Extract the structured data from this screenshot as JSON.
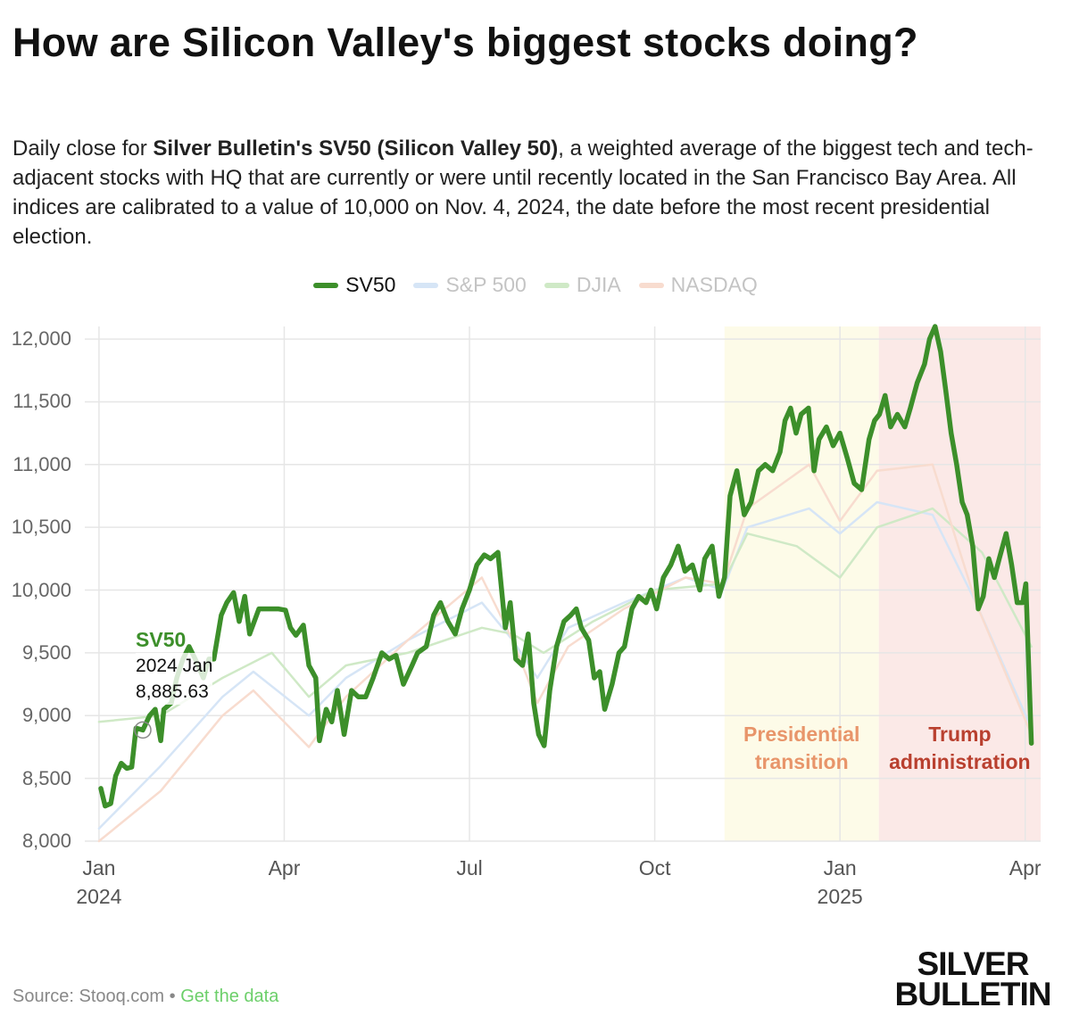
{
  "chart_data": {
    "type": "line",
    "title": "How are Silicon Valley's biggest stocks doing?",
    "subtitle": [
      "Daily close for ",
      "Silver Bulletin's SV50 (Silicon Valley 50)",
      ", a weighted average of the biggest tech and tech-adjacent stocks with HQ that are currently or were until recently located in the San Francisco Bay Area. All indices are calibrated to a value of 10,000 on Nov. 4, 2024, the date before the most recent presidential election."
    ],
    "highlighted": "SV50",
    "xlim": [
      -0.23,
      15.25
    ],
    "xticks": [
      {
        "value": 0,
        "label": "Jan\n2024"
      },
      {
        "value": 3,
        "label": "Apr"
      },
      {
        "value": 6,
        "label": "Jul"
      },
      {
        "value": 9,
        "label": "Oct"
      },
      {
        "value": 12,
        "label": "Jan\n2025"
      },
      {
        "value": 15,
        "label": "Apr"
      }
    ],
    "ylim": [
      8000,
      12100
    ],
    "yticks": [
      {
        "value": 8000,
        "label": "8,000"
      },
      {
        "value": 8500,
        "label": "8,500"
      },
      {
        "value": 9000,
        "label": "9,000"
      },
      {
        "value": 9500,
        "label": "9,500"
      },
      {
        "value": 10000,
        "label": "10,000"
      },
      {
        "value": 10500,
        "label": "10,500"
      },
      {
        "value": 11000,
        "label": "11,000"
      },
      {
        "value": 11500,
        "label": "11,500"
      },
      {
        "value": 12000,
        "label": "12,000"
      }
    ],
    "grid": true,
    "bands": [
      {
        "label": "Presidential transition",
        "start": 10.13,
        "end": 12.63,
        "color": "#fdfbe8",
        "text_color": "#e8956a"
      },
      {
        "label": "Trump administration",
        "start": 12.63,
        "end": 15.25,
        "color": "#fbe9e7",
        "text_color": "#b9402f"
      }
    ],
    "series": [
      {
        "name": "S&P 500",
        "color": "#d6e5f6",
        "x": [
          0,
          1,
          2,
          2.5,
          3.4,
          4,
          5,
          6.2,
          6.7,
          7.1,
          7.6,
          8.5,
          9.5,
          10.1,
          10.5,
          11.5,
          12,
          12.6,
          13.5,
          14.2,
          15.1
        ],
        "values": [
          8100,
          8600,
          9150,
          9350,
          9000,
          9300,
          9600,
          9900,
          9600,
          9300,
          9700,
          9900,
          10100,
          10000,
          10500,
          10650,
          10450,
          10700,
          10600,
          9900,
          8900
        ]
      },
      {
        "name": "DJIA",
        "color": "#cfe9c6",
        "x": [
          0,
          1,
          2,
          2.8,
          3.4,
          4,
          5,
          6.2,
          6.7,
          7.2,
          8,
          9,
          10.1,
          10.5,
          11.3,
          12,
          12.6,
          13.5,
          14.3,
          15.1
        ],
        "values": [
          8950,
          9000,
          9300,
          9500,
          9150,
          9400,
          9500,
          9700,
          9650,
          9500,
          9750,
          10000,
          10050,
          10450,
          10350,
          10100,
          10500,
          10650,
          10300,
          9550
        ]
      },
      {
        "name": "NASDAQ",
        "color": "#f8dccf",
        "x": [
          0,
          1,
          2,
          2.5,
          3.4,
          4,
          5,
          6.2,
          6.7,
          7.1,
          7.6,
          8.5,
          9.5,
          10.1,
          10.5,
          11.5,
          12,
          12.6,
          13.5,
          14.2,
          15.1
        ],
        "values": [
          8000,
          8400,
          9000,
          9200,
          8750,
          9150,
          9600,
          10100,
          9600,
          9100,
          9550,
          9850,
          10100,
          10050,
          10650,
          11000,
          10550,
          10950,
          11000,
          9900,
          8850
        ]
      },
      {
        "name": "SV50",
        "color": "#3c8f2a",
        "x": [
          0.03,
          0.1,
          0.19,
          0.27,
          0.36,
          0.45,
          0.53,
          0.6,
          0.71,
          0.82,
          0.91,
          1.0,
          1.05,
          1.17,
          1.26,
          1.36,
          1.46,
          1.58,
          1.69,
          1.78,
          1.86,
          1.98,
          2.07,
          2.18,
          2.27,
          2.36,
          2.44,
          2.59,
          2.73,
          2.9,
          3.02,
          3.1,
          3.19,
          3.31,
          3.4,
          3.51,
          3.57,
          3.68,
          3.77,
          3.86,
          3.97,
          4.09,
          4.2,
          4.32,
          4.44,
          4.58,
          4.7,
          4.81,
          4.93,
          5.07,
          5.16,
          5.3,
          5.42,
          5.53,
          5.65,
          5.77,
          5.88,
          6.0,
          6.12,
          6.24,
          6.34,
          6.46,
          6.58,
          6.66,
          6.75,
          6.86,
          6.95,
          7.04,
          7.12,
          7.21,
          7.3,
          7.41,
          7.53,
          7.64,
          7.73,
          7.81,
          7.93,
          8.02,
          8.11,
          8.19,
          8.31,
          8.42,
          8.51,
          8.63,
          8.74,
          8.86,
          8.94,
          9.03,
          9.14,
          9.26,
          9.38,
          9.49,
          9.61,
          9.73,
          9.81,
          9.93,
          10.04,
          10.13,
          10.22,
          10.33,
          10.45,
          10.56,
          10.68,
          10.79,
          10.91,
          11.03,
          11.11,
          11.2,
          11.29,
          11.37,
          11.49,
          11.58,
          11.66,
          11.78,
          11.89,
          12.0,
          12.12,
          12.23,
          12.35,
          12.47,
          12.56,
          12.64,
          12.73,
          12.82,
          12.93,
          13.05,
          13.14,
          13.25,
          13.37,
          13.45,
          13.54,
          13.63,
          13.71,
          13.8,
          13.89,
          13.98,
          14.06,
          14.15,
          14.24,
          14.32,
          14.41,
          14.5,
          14.58,
          14.69,
          14.78,
          14.87,
          14.96,
          15.01,
          15.1
        ],
        "values": [
          8420,
          8280,
          8300,
          8520,
          8620,
          8580,
          8590,
          8900,
          8885.63,
          9000,
          9050,
          8800,
          9050,
          9100,
          9300,
          9450,
          9550,
          9430,
          9300,
          9450,
          9450,
          9800,
          9900,
          9980,
          9750,
          9950,
          9650,
          9850,
          9850,
          9850,
          9840,
          9700,
          9640,
          9720,
          9400,
          9300,
          8800,
          9050,
          8950,
          9200,
          8850,
          9200,
          9150,
          9150,
          9300,
          9500,
          9450,
          9480,
          9250,
          9400,
          9500,
          9550,
          9800,
          9900,
          9750,
          9650,
          9850,
          10000,
          10200,
          10280,
          10250,
          10300,
          9700,
          9900,
          9450,
          9400,
          9650,
          9100,
          8850,
          8760,
          9200,
          9550,
          9750,
          9800,
          9850,
          9700,
          9600,
          9300,
          9350,
          9050,
          9250,
          9500,
          9550,
          9850,
          9950,
          9900,
          10000,
          9850,
          10100,
          10200,
          10350,
          10150,
          10200,
          10000,
          10250,
          10350,
          9950,
          10100,
          10750,
          10950,
          10600,
          10700,
          10950,
          11000,
          10950,
          11100,
          11350,
          11450,
          11250,
          11400,
          11450,
          10950,
          11200,
          11300,
          11150,
          11250,
          11050,
          10850,
          10800,
          11200,
          11350,
          11400,
          11550,
          11300,
          11400,
          11300,
          11450,
          11650,
          11800,
          12000,
          12100,
          11900,
          11600,
          11250,
          11000,
          10700,
          10600,
          10350,
          9850,
          9950,
          10250,
          10100,
          10250,
          10450,
          10200,
          9900,
          9900,
          10050,
          8780
        ]
      }
    ],
    "tooltip": {
      "series": "SV50",
      "date": "2024 Jan",
      "x": 0.71,
      "value": 8885.63,
      "label": "8,885.63"
    },
    "source": "Source: Stooq.com",
    "separator": "•",
    "data_link": "Get the data",
    "logo": [
      "SILVER",
      "BULLETIN"
    ]
  }
}
